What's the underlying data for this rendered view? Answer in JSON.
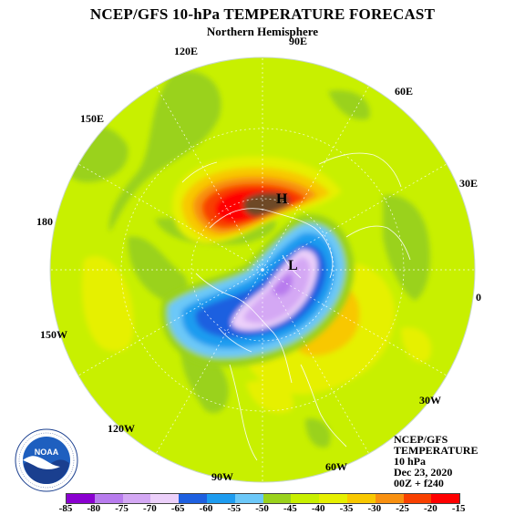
{
  "header": {
    "title": "NCEP/GFS 10-hPa TEMPERATURE FORECAST",
    "subtitle": "Northern Hemisphere"
  },
  "longitudes": {
    "e90": "90E",
    "e120": "120E",
    "e60": "60E",
    "e150": "150E",
    "e30": "30E",
    "d180": "180",
    "d0": "0",
    "w150": "150W",
    "w30": "30W",
    "w120": "120W",
    "w60": "60W",
    "w90": "90W"
  },
  "centers": {
    "high": "H",
    "low": "L"
  },
  "info": {
    "line1": "NCEP/GFS",
    "line2": "TEMPERATURE",
    "line3": "10 hPa",
    "line4": "Dec 23, 2020",
    "line5": "00Z + f240"
  },
  "logo": {
    "text": "NOAA",
    "ring_text": "NATIONAL OCEANIC AND ATMOSPHERIC ADMINISTRATION · U.S. DEPARTMENT OF COMMERCE"
  },
  "colorbar": {
    "labels": [
      "-85",
      "-80",
      "-75",
      "-70",
      "-65",
      "-60",
      "-55",
      "-50",
      "-45",
      "-40",
      "-35",
      "-30",
      "-25",
      "-20",
      "-15"
    ],
    "colors": [
      "#8a00d0",
      "#b87cee",
      "#d4a8f4",
      "#ecd0fa",
      "#1e60e0",
      "#1e9cf0",
      "#6cc8f8",
      "#9ad21c",
      "#c8f000",
      "#e6f000",
      "#f8c800",
      "#f89010",
      "#f84000",
      "#ff0000",
      "#6e4a28"
    ]
  }
}
